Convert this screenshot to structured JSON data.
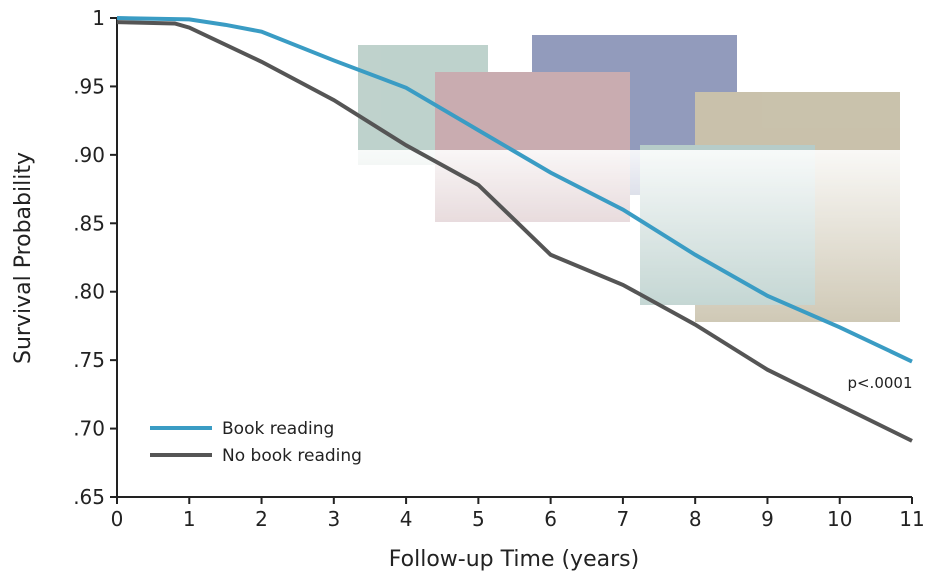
{
  "chart_data": {
    "type": "line",
    "x_label": "Follow-up Time (years)",
    "y_label": "Survival Probability",
    "annotation": "p<.0001",
    "xlim": [
      0,
      11
    ],
    "xticks": [
      0,
      1,
      2,
      3,
      4,
      5,
      6,
      7,
      8,
      9,
      10,
      11
    ],
    "ylim": [
      0.65,
      1
    ],
    "yticks": [
      {
        "value": 0.65,
        "label": ".65"
      },
      {
        "value": 0.7,
        "label": ".70"
      },
      {
        "value": 0.75,
        "label": ".75"
      },
      {
        "value": 0.8,
        "label": ".80"
      },
      {
        "value": 0.85,
        "label": ".85"
      },
      {
        "value": 0.9,
        "label": ".90"
      },
      {
        "value": 0.95,
        "label": ".95"
      },
      1
    ],
    "legend": "lower left",
    "series": [
      {
        "name": "Book reading",
        "color": "#3a9cc4",
        "x": [
          0,
          1,
          1.5,
          2,
          3,
          4,
          5,
          6,
          7,
          8,
          9,
          10,
          11
        ],
        "values": [
          1,
          0.999,
          0.995,
          0.99,
          0.969,
          0.949,
          0.918,
          0.887,
          0.86,
          0.827,
          0.797,
          0.774,
          0.749
        ]
      },
      {
        "name": "No book reading",
        "color": "#555555",
        "x": [
          0,
          0.8,
          1,
          2,
          3,
          4,
          5,
          6,
          7,
          8,
          9,
          10,
          11
        ],
        "values": [
          0.997,
          0.996,
          0.993,
          0.968,
          0.94,
          0.907,
          0.878,
          0.827,
          0.805,
          0.776,
          0.743,
          0.717,
          0.691
        ]
      }
    ]
  }
}
